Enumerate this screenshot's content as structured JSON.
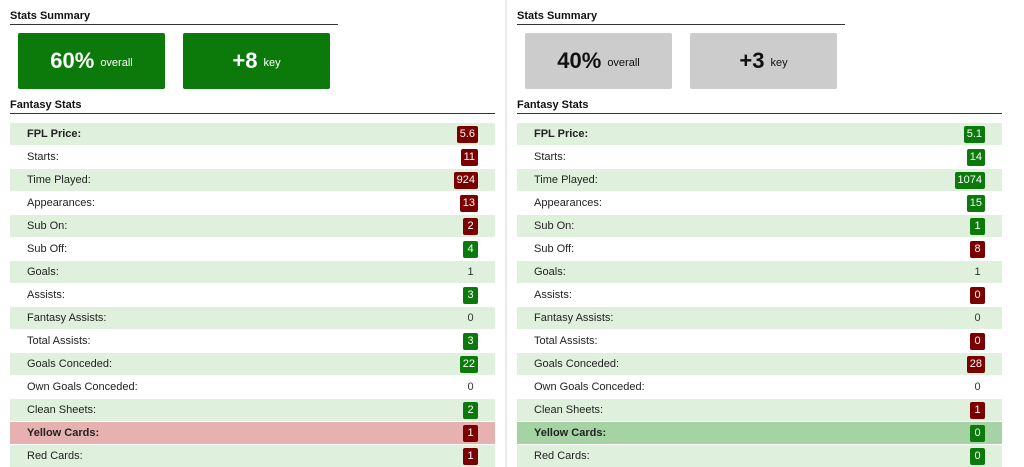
{
  "left": {
    "summary_title": "Stats Summary",
    "box1": {
      "value": "60%",
      "label": "overall"
    },
    "box2": {
      "value": "+8",
      "label": "key"
    },
    "fantasy_title": "Fantasy Stats",
    "rows": [
      {
        "label": "FPL Price:",
        "value": "5.6",
        "badge": "red",
        "bold": true
      },
      {
        "label": "Starts:",
        "value": "11",
        "badge": "red"
      },
      {
        "label": "Time Played:",
        "value": "924",
        "badge": "red"
      },
      {
        "label": "Appearances:",
        "value": "13",
        "badge": "red"
      },
      {
        "label": "Sub On:",
        "value": "2",
        "badge": "red"
      },
      {
        "label": "Sub Off:",
        "value": "4",
        "badge": "green"
      },
      {
        "label": "Goals:",
        "value": "1",
        "badge": "plain"
      },
      {
        "label": "Assists:",
        "value": "3",
        "badge": "green"
      },
      {
        "label": "Fantasy Assists:",
        "value": "0",
        "badge": "plain"
      },
      {
        "label": "Total Assists:",
        "value": "3",
        "badge": "green"
      },
      {
        "label": "Goals Conceded:",
        "value": "22",
        "badge": "green"
      },
      {
        "label": "Own Goals Conceded:",
        "value": "0",
        "badge": "plain"
      },
      {
        "label": "Clean Sheets:",
        "value": "2",
        "badge": "green"
      },
      {
        "label": "Yellow Cards:",
        "value": "1",
        "badge": "red",
        "bold": true,
        "highlight": "red"
      },
      {
        "label": "Red Cards:",
        "value": "1",
        "badge": "red"
      }
    ]
  },
  "right": {
    "summary_title": "Stats Summary",
    "box1": {
      "value": "40%",
      "label": "overall"
    },
    "box2": {
      "value": "+3",
      "label": "key"
    },
    "fantasy_title": "Fantasy Stats",
    "rows": [
      {
        "label": "FPL Price:",
        "value": "5.1",
        "badge": "green",
        "bold": true
      },
      {
        "label": "Starts:",
        "value": "14",
        "badge": "green"
      },
      {
        "label": "Time Played:",
        "value": "1074",
        "badge": "green"
      },
      {
        "label": "Appearances:",
        "value": "15",
        "badge": "green"
      },
      {
        "label": "Sub On:",
        "value": "1",
        "badge": "green"
      },
      {
        "label": "Sub Off:",
        "value": "8",
        "badge": "red"
      },
      {
        "label": "Goals:",
        "value": "1",
        "badge": "plain"
      },
      {
        "label": "Assists:",
        "value": "0",
        "badge": "red"
      },
      {
        "label": "Fantasy Assists:",
        "value": "0",
        "badge": "plain"
      },
      {
        "label": "Total Assists:",
        "value": "0",
        "badge": "red"
      },
      {
        "label": "Goals Conceded:",
        "value": "28",
        "badge": "red"
      },
      {
        "label": "Own Goals Conceded:",
        "value": "0",
        "badge": "plain"
      },
      {
        "label": "Clean Sheets:",
        "value": "1",
        "badge": "red"
      },
      {
        "label": "Yellow Cards:",
        "value": "0",
        "badge": "green",
        "bold": true,
        "highlight": "green"
      },
      {
        "label": "Red Cards:",
        "value": "0",
        "badge": "green"
      }
    ]
  },
  "colors": {
    "better": "#0b7a0b",
    "worse": "#7a0000",
    "neutral_box": "#cccccc"
  }
}
